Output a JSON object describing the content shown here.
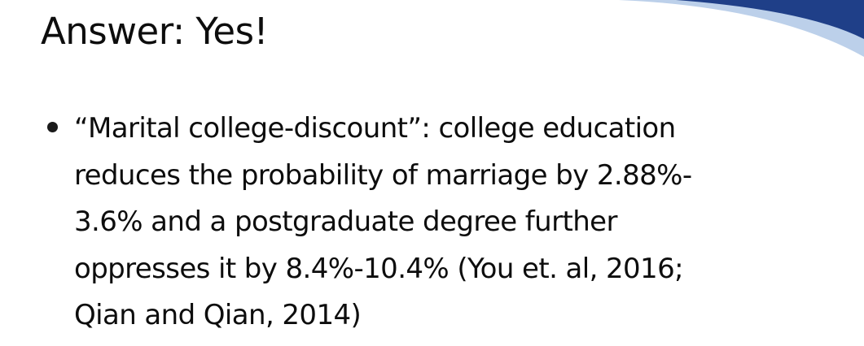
{
  "slide": {
    "title": "Answer: Yes!",
    "bullets": [
      {
        "lines": [
          "“Marital college-discount”: college education",
          "reduces the probability of marriage by 2.88%-",
          "3.6% and a postgraduate degree further",
          "oppresses it by 8.4%-10.4% (You et. al, 2016;",
          "Qian and Qian, 2014)"
        ]
      }
    ]
  },
  "theme": {
    "accent_dark": "#1f3f88",
    "accent_light": "#bcd0ea",
    "text_color": "#0d0d0d"
  }
}
